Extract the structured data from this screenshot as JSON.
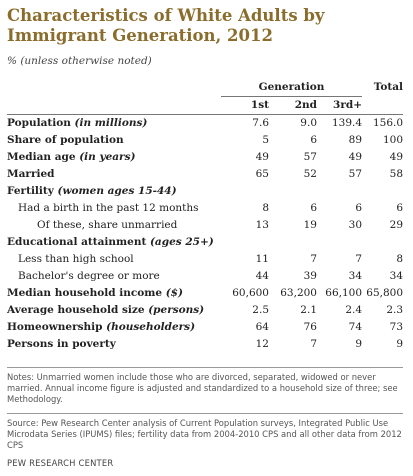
{
  "title": "Characteristics of White Adults by Immigrant Generation, 2012",
  "subtitle": "% (unless otherwise noted)",
  "header": {
    "generation": "Generation",
    "total": "Total",
    "first": "1st",
    "second": "2nd",
    "third": "3rd+"
  },
  "rows": [
    {
      "main": "Population",
      "qual": "(in millions)",
      "style": "bold",
      "v1": "7.6",
      "v2": "9.0",
      "v3": "139.4",
      "vt": "156.0"
    },
    {
      "main": "Share of population",
      "qual": "",
      "style": "bold",
      "v1": "5",
      "v2": "6",
      "v3": "89",
      "vt": "100"
    },
    {
      "main": "Median age",
      "qual": "(in years)",
      "style": "bold",
      "v1": "49",
      "v2": "57",
      "v3": "49",
      "vt": "49"
    },
    {
      "main": "Married",
      "qual": "",
      "style": "bold",
      "v1": "65",
      "v2": "52",
      "v3": "57",
      "vt": "58"
    },
    {
      "main": "Fertility",
      "qual": "(women ages 15-44)",
      "style": "section",
      "v1": "",
      "v2": "",
      "v3": "",
      "vt": ""
    },
    {
      "main": "Had a birth in the past 12 months",
      "qual": "",
      "style": "indent",
      "v1": "8",
      "v2": "6",
      "v3": "6",
      "vt": "6"
    },
    {
      "main": "Of these, share unmarried",
      "qual": "",
      "style": "indent2",
      "v1": "13",
      "v2": "19",
      "v3": "30",
      "vt": "29"
    },
    {
      "main": "Educational attainment",
      "qual": "(ages 25+)",
      "style": "section",
      "v1": "",
      "v2": "",
      "v3": "",
      "vt": ""
    },
    {
      "main": "Less than high school",
      "qual": "",
      "style": "indent",
      "v1": "11",
      "v2": "7",
      "v3": "7",
      "vt": "8"
    },
    {
      "main": "Bachelor's degree or more",
      "qual": "",
      "style": "indent",
      "v1": "44",
      "v2": "39",
      "v3": "34",
      "vt": "34"
    },
    {
      "main": "Median household income",
      "qual": "($)",
      "style": "bold",
      "v1": "60,600",
      "v2": "63,200",
      "v3": "66,100",
      "vt": "65,800"
    },
    {
      "main": "Average household size",
      "qual": "(persons)",
      "style": "bold",
      "v1": "2.5",
      "v2": "2.1",
      "v3": "2.4",
      "vt": "2.3"
    },
    {
      "main": "Homeownership",
      "qual": "(householders)",
      "style": "bold",
      "v1": "64",
      "v2": "76",
      "v3": "74",
      "vt": "73"
    },
    {
      "main": "Persons in poverty",
      "qual": "",
      "style": "bold",
      "v1": "12",
      "v2": "7",
      "v3": "9",
      "vt": "9"
    }
  ],
  "notes": "Notes: Unmarried women include those who are divorced, separated, widowed or never married. Annual income figure is adjusted and standardized to a household size of three; see Methodology.",
  "source": "Source: Pew Research Center analysis of Current Population surveys, Integrated Public Use Microdata Series (IPUMS) files; fertility data from 2004-2010 CPS and all other data from 2012 CPS",
  "brand": "PEW RESEARCH CENTER"
}
